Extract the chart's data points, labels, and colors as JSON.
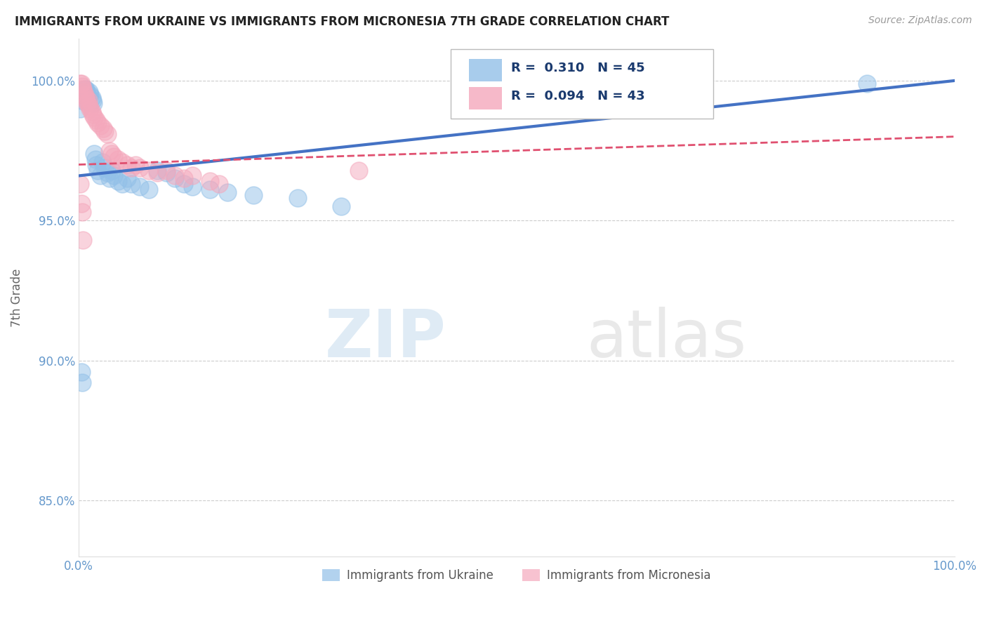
{
  "title": "IMMIGRANTS FROM UKRAINE VS IMMIGRANTS FROM MICRONESIA 7TH GRADE CORRELATION CHART",
  "source": "Source: ZipAtlas.com",
  "ylabel": "7th Grade",
  "xlim": [
    0,
    1.0
  ],
  "ylim": [
    0.83,
    1.015
  ],
  "xticks": [
    0.0,
    0.1,
    0.2,
    0.3,
    0.4,
    0.5,
    0.6,
    0.7,
    0.8,
    0.9,
    1.0
  ],
  "xtick_labels": [
    "0.0%",
    "",
    "",
    "",
    "",
    "",
    "",
    "",
    "",
    "",
    "100.0%"
  ],
  "yticks": [
    0.85,
    0.9,
    0.95,
    1.0
  ],
  "ytick_labels": [
    "85.0%",
    "90.0%",
    "95.0%",
    "100.0%"
  ],
  "r_ukraine": 0.31,
  "n_ukraine": 45,
  "r_micronesia": 0.094,
  "n_micronesia": 43,
  "ukraine_color": "#92C0E8",
  "micronesia_color": "#F4A8BC",
  "ukraine_line_color": "#4472C4",
  "micronesia_line_color": "#E05070",
  "ukraine_scatter": [
    [
      0.002,
      0.99
    ],
    [
      0.003,
      0.993
    ],
    [
      0.004,
      0.995
    ],
    [
      0.005,
      0.996
    ],
    [
      0.006,
      0.996
    ],
    [
      0.007,
      0.997
    ],
    [
      0.008,
      0.997
    ],
    [
      0.009,
      0.996
    ],
    [
      0.01,
      0.995
    ],
    [
      0.011,
      0.994
    ],
    [
      0.012,
      0.996
    ],
    [
      0.013,
      0.995
    ],
    [
      0.015,
      0.994
    ],
    [
      0.016,
      0.993
    ],
    [
      0.017,
      0.992
    ],
    [
      0.018,
      0.974
    ],
    [
      0.019,
      0.972
    ],
    [
      0.02,
      0.97
    ],
    [
      0.022,
      0.968
    ],
    [
      0.025,
      0.966
    ],
    [
      0.027,
      0.971
    ],
    [
      0.03,
      0.969
    ],
    [
      0.033,
      0.967
    ],
    [
      0.035,
      0.965
    ],
    [
      0.038,
      0.968
    ],
    [
      0.04,
      0.966
    ],
    [
      0.045,
      0.964
    ],
    [
      0.05,
      0.963
    ],
    [
      0.055,
      0.965
    ],
    [
      0.06,
      0.963
    ],
    [
      0.07,
      0.962
    ],
    [
      0.08,
      0.961
    ],
    [
      0.09,
      0.968
    ],
    [
      0.1,
      0.967
    ],
    [
      0.11,
      0.965
    ],
    [
      0.12,
      0.963
    ],
    [
      0.13,
      0.962
    ],
    [
      0.15,
      0.961
    ],
    [
      0.17,
      0.96
    ],
    [
      0.2,
      0.959
    ],
    [
      0.25,
      0.958
    ],
    [
      0.003,
      0.896
    ],
    [
      0.004,
      0.892
    ],
    [
      0.9,
      0.999
    ],
    [
      0.3,
      0.955
    ]
  ],
  "micronesia_scatter": [
    [
      0.002,
      0.999
    ],
    [
      0.003,
      0.999
    ],
    [
      0.004,
      0.998
    ],
    [
      0.005,
      0.997
    ],
    [
      0.006,
      0.996
    ],
    [
      0.007,
      0.995
    ],
    [
      0.008,
      0.994
    ],
    [
      0.009,
      0.993
    ],
    [
      0.01,
      0.992
    ],
    [
      0.011,
      0.993
    ],
    [
      0.012,
      0.991
    ],
    [
      0.013,
      0.99
    ],
    [
      0.015,
      0.989
    ],
    [
      0.016,
      0.988
    ],
    [
      0.018,
      0.987
    ],
    [
      0.02,
      0.986
    ],
    [
      0.022,
      0.985
    ],
    [
      0.025,
      0.984
    ],
    [
      0.028,
      0.983
    ],
    [
      0.03,
      0.982
    ],
    [
      0.033,
      0.981
    ],
    [
      0.035,
      0.975
    ],
    [
      0.038,
      0.974
    ],
    [
      0.04,
      0.973
    ],
    [
      0.045,
      0.972
    ],
    [
      0.05,
      0.971
    ],
    [
      0.055,
      0.97
    ],
    [
      0.06,
      0.969
    ],
    [
      0.065,
      0.97
    ],
    [
      0.07,
      0.969
    ],
    [
      0.08,
      0.968
    ],
    [
      0.09,
      0.967
    ],
    [
      0.1,
      0.968
    ],
    [
      0.11,
      0.966
    ],
    [
      0.12,
      0.965
    ],
    [
      0.13,
      0.966
    ],
    [
      0.15,
      0.964
    ],
    [
      0.16,
      0.963
    ],
    [
      0.002,
      0.963
    ],
    [
      0.003,
      0.956
    ],
    [
      0.004,
      0.953
    ],
    [
      0.32,
      0.968
    ],
    [
      0.005,
      0.943
    ]
  ],
  "legend_ukraine": "Immigrants from Ukraine",
  "legend_micronesia": "Immigrants from Micronesia",
  "watermark_zip": "ZIP",
  "watermark_atlas": "atlas",
  "background_color": "#ffffff",
  "grid_color": "#cccccc",
  "title_color": "#222222",
  "axis_label_color": "#666666",
  "tick_color": "#6699CC"
}
